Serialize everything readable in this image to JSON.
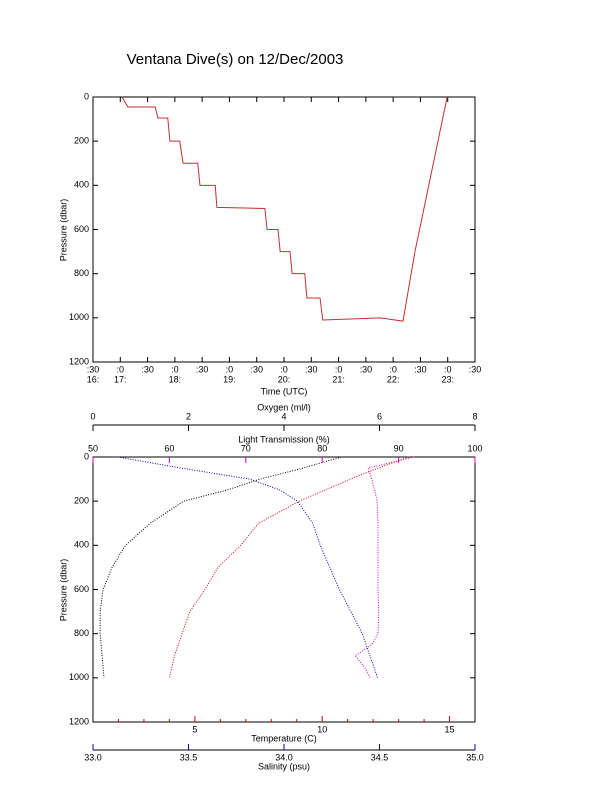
{
  "chart_data": [
    {
      "type": "line",
      "title": "Ventana Dive(s) on 12/Dec/2003",
      "xlabel": "Time (UTC)",
      "ylabel": "Pressure (dbar)",
      "xlim": [
        16.5,
        23.5
      ],
      "xticks": [
        {
          "value": 16.5,
          "label": ":30"
        },
        {
          "value": 17,
          "label": ":0"
        },
        {
          "value": 17.5,
          "label": ":30"
        },
        {
          "value": 18,
          "label": ":0"
        },
        {
          "value": 18.5,
          "label": ":30"
        },
        {
          "value": 19,
          "label": ":0"
        },
        {
          "value": 19.5,
          "label": ":30"
        },
        {
          "value": 20,
          "label": ":0"
        },
        {
          "value": 20.5,
          "label": ":30"
        },
        {
          "value": 21,
          "label": ":0"
        },
        {
          "value": 21.5,
          "label": ":30"
        },
        {
          "value": 22,
          "label": ":0"
        },
        {
          "value": 22.5,
          "label": ":30"
        },
        {
          "value": 23,
          "label": ":0"
        },
        {
          "value": 23.5,
          "label": ":30"
        }
      ],
      "xticks_hours": [
        {
          "value": 16.5,
          "label": "16:"
        },
        {
          "value": 17,
          "label": "17:"
        },
        {
          "value": 18,
          "label": "18:"
        },
        {
          "value": 19,
          "label": "19:"
        },
        {
          "value": 20,
          "label": "20:"
        },
        {
          "value": 21,
          "label": "21:"
        },
        {
          "value": 22,
          "label": "22:"
        },
        {
          "value": 23,
          "label": "23:"
        }
      ],
      "ylim": [
        0,
        1200
      ],
      "y_reversed": true,
      "yticks": [
        0,
        200,
        400,
        600,
        800,
        1000,
        1200
      ],
      "series": [
        {
          "color": "#c03030",
          "x": [
            17.03,
            17.14,
            17.64,
            17.69,
            17.87,
            17.91,
            18.09,
            18.15,
            18.42,
            18.46,
            18.74,
            18.77,
            19.65,
            19.69,
            19.89,
            19.93,
            20.11,
            20.15,
            20.38,
            20.42,
            20.66,
            20.71,
            21.21,
            21.76,
            22.18,
            22.4,
            22.99
          ],
          "y": [
            0,
            45,
            45,
            95,
            95,
            200,
            200,
            300,
            300,
            400,
            400,
            500,
            505,
            600,
            600,
            700,
            700,
            800,
            800,
            910,
            910,
            1010,
            1005,
            1000,
            1015,
            700,
            0
          ]
        }
      ]
    },
    {
      "type": "profile",
      "ylabel": "Pressure (dbar)",
      "ylim": [
        0,
        1200
      ],
      "y_reversed": true,
      "yticks": [
        0,
        200,
        400,
        600,
        800,
        1000,
        1200
      ],
      "series": [
        {
          "xlabel": "Oxygen (ml/l)",
          "color": "#000000",
          "xlim": [
            0,
            8
          ],
          "xticks": [
            0,
            2,
            4,
            6,
            8
          ],
          "x": [
            5.2,
            4.4,
            3.5,
            2.8,
            1.9,
            1.2,
            0.68,
            0.4,
            0.21,
            0.15,
            0.15,
            0.19,
            0.23
          ],
          "y": [
            0,
            50,
            100,
            150,
            200,
            300,
            400,
            500,
            600,
            700,
            800,
            900,
            1000
          ]
        },
        {
          "xlabel": "Light Transmission (%)",
          "color": "#cc00cc",
          "xlim": [
            50,
            100
          ],
          "xticks": [
            50,
            60,
            70,
            80,
            90,
            100
          ],
          "x": [
            92,
            86,
            86.5,
            87.2,
            87.3,
            87.3,
            87.3,
            87.3,
            87.4,
            87.3,
            86.5,
            84.3,
            85.5,
            86.3
          ],
          "y": [
            0,
            50,
            100,
            200,
            300,
            400,
            500,
            600,
            700,
            800,
            850,
            900,
            950,
            1000
          ]
        },
        {
          "xlabel": "Temperature (C)",
          "color": "#dd0000",
          "xlim": [
            1,
            16
          ],
          "xticks": [
            5,
            10,
            15
          ],
          "minor_ticks": [
            2,
            3,
            4,
            6,
            7,
            8,
            9,
            11,
            12,
            13,
            14
          ],
          "x": [
            13.4,
            12.2,
            11.1,
            9.1,
            7.5,
            6.8,
            5.9,
            5.4,
            4.8,
            4.5,
            4.2,
            4.0
          ],
          "y": [
            0,
            50,
            100,
            200,
            300,
            400,
            500,
            600,
            700,
            800,
            900,
            1000
          ]
        },
        {
          "xlabel": "Salinity (psu)",
          "color": "#0000cc",
          "xlim": [
            33,
            35
          ],
          "xticks": [
            {
              "value": 33,
              "label": "33.0"
            },
            33.5,
            {
              "value": 34,
              "label": "34.0"
            },
            34.5,
            {
              "value": 35,
              "label": "35.0"
            }
          ],
          "x": [
            33.13,
            33.46,
            33.82,
            33.98,
            34.07,
            34.15,
            34.19,
            34.24,
            34.29,
            34.35,
            34.41,
            34.45,
            34.49
          ],
          "y": [
            0,
            50,
            100,
            150,
            200,
            300,
            400,
            500,
            600,
            700,
            800,
            900,
            1000
          ]
        }
      ]
    }
  ]
}
